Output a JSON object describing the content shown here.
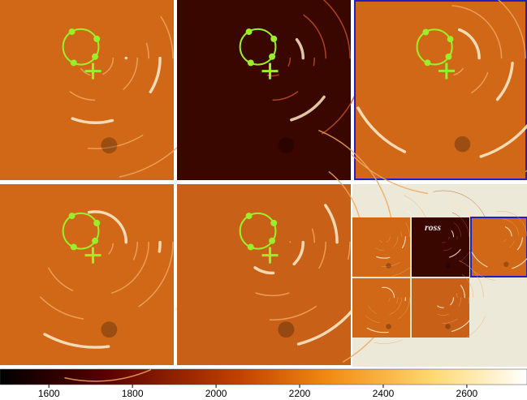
{
  "thumbnail_label": "ross",
  "colorbar": {
    "lim": [
      1483,
      2744
    ],
    "ticks": [
      1600,
      1800,
      2000,
      2200,
      2400,
      2600
    ]
  }
}
